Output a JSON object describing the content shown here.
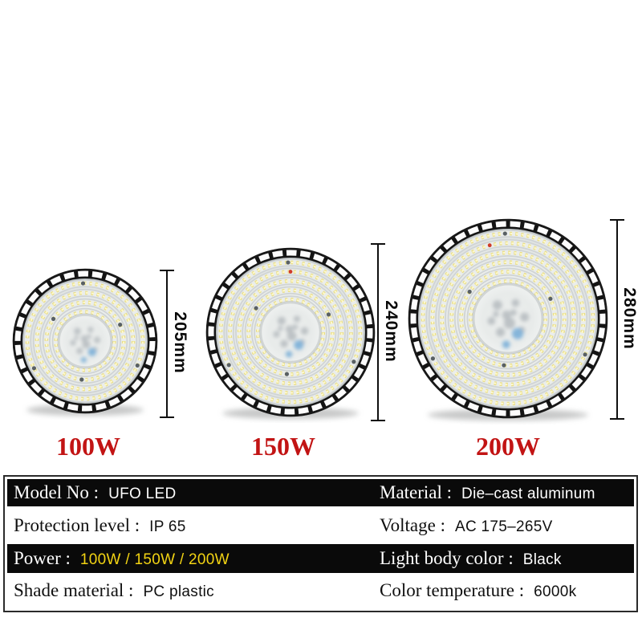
{
  "lamps": [
    {
      "power": "100W",
      "diameter": "205mm"
    },
    {
      "power": "150W",
      "diameter": "240mm"
    },
    {
      "power": "200W",
      "diameter": "280mm"
    }
  ],
  "spec_table": {
    "rows": [
      {
        "cells": [
          {
            "label": "Model No :",
            "value": "UFO LED"
          },
          {
            "label": "Material :",
            "value": "Die–cast aluminum"
          }
        ]
      },
      {
        "cells": [
          {
            "label": "Protection level :",
            "value": "IP 65"
          },
          {
            "label": "Voltage :",
            "value": "AC 175–265V"
          }
        ]
      },
      {
        "cells": [
          {
            "label": "Power :",
            "value": "100W / 150W / 200W"
          },
          {
            "label": "Light body color :",
            "value": "Black"
          }
        ]
      },
      {
        "cells": [
          {
            "label": "Shade material :",
            "value": "PC plastic"
          },
          {
            "label": "Color temperature :",
            "value": "6000k"
          }
        ]
      }
    ]
  },
  "colors": {
    "wattage_red": "#c21414",
    "power_value_yellow": "#f2d313",
    "table_dark_row": "#0a0a0a",
    "rim_black": "#161616",
    "led_yellow": "#ece189",
    "lens_gray": "#e3e7e7",
    "blue_spot": "#7fb2d9"
  }
}
